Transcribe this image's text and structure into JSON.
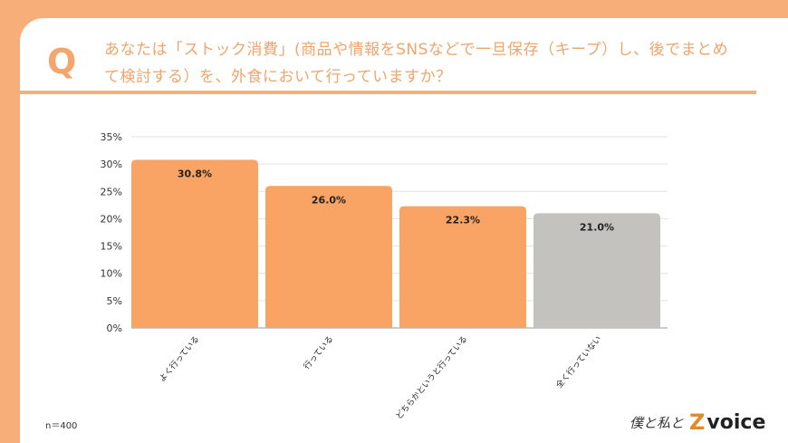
{
  "question": {
    "mark": "Q",
    "title": "あなたは「ストック消費」(商品や情報をSNSなどで一旦保存（キープ）し、後でまとめて検討する）を、外食において行っていますか？"
  },
  "sample_size": "n＝400",
  "logo": {
    "text": "僕と私と",
    "brand_mark": "Z",
    "brand": "voice"
  },
  "colors": {
    "background": "#f7ae78",
    "bar_orange": "#f9a464",
    "bar_gray": "#c4c2bf",
    "title": "#f0a56c"
  },
  "chart_data": {
    "type": "bar",
    "categories": [
      "よく行っている",
      "行っている",
      "どちらかというと行っている",
      "全く行っていない"
    ],
    "values": [
      30.8,
      26.0,
      22.3,
      21.0
    ],
    "data_labels": [
      "30.8%",
      "26.0%",
      "22.3%",
      "21.0%"
    ],
    "bar_colors": [
      "#f9a464",
      "#f9a464",
      "#f9a464",
      "#c4c2bf"
    ],
    "ylim": [
      0,
      35
    ],
    "yticks": [
      "0%",
      "5%",
      "10%",
      "15%",
      "20%",
      "25%",
      "30%",
      "35%"
    ],
    "grid": true,
    "title": "",
    "xlabel": "",
    "ylabel": ""
  }
}
